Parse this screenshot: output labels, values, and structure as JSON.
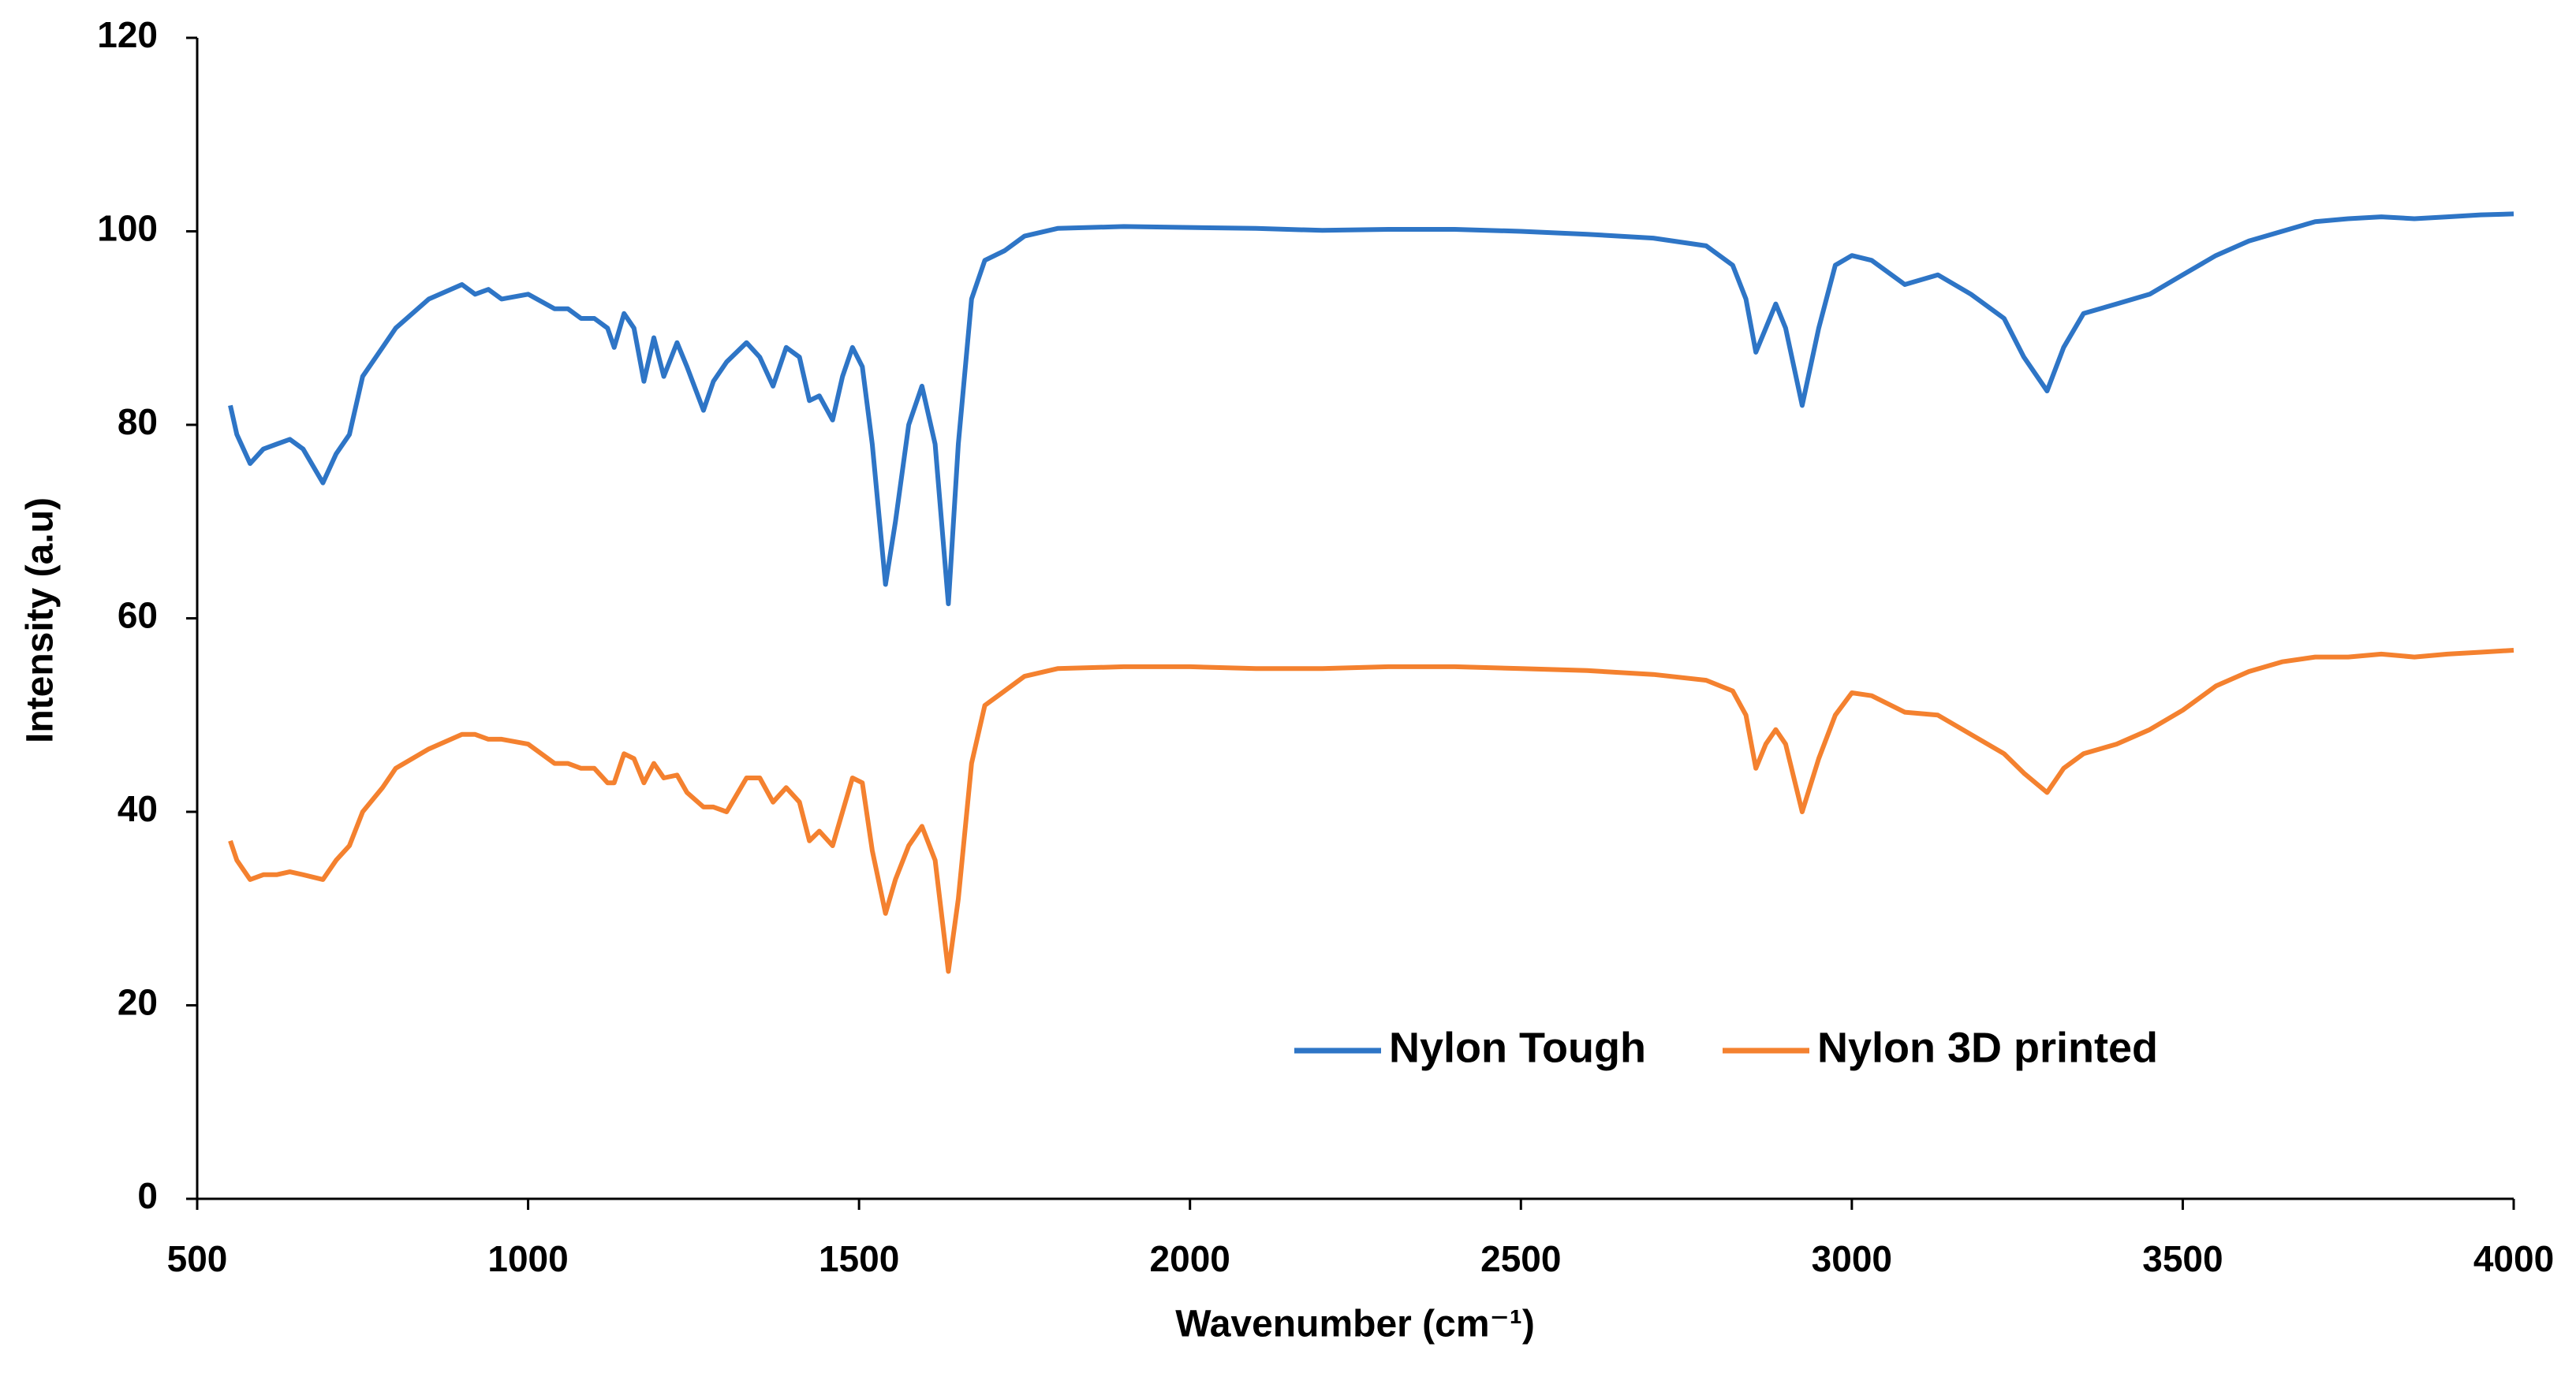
{
  "chart_data": {
    "type": "line",
    "x_label": "Wavenumber (cm⁻¹)",
    "y_label": "Intensity (a.u)",
    "x": [
      550,
      560,
      580,
      600,
      620,
      640,
      660,
      690,
      710,
      730,
      750,
      780,
      800,
      850,
      900,
      920,
      940,
      960,
      1000,
      1040,
      1060,
      1080,
      1100,
      1120,
      1130,
      1145,
      1160,
      1175,
      1190,
      1205,
      1225,
      1240,
      1265,
      1280,
      1300,
      1330,
      1350,
      1370,
      1390,
      1410,
      1425,
      1440,
      1460,
      1475,
      1490,
      1505,
      1520,
      1540,
      1555,
      1575,
      1595,
      1615,
      1635,
      1650,
      1670,
      1690,
      1720,
      1750,
      1800,
      1900,
      2000,
      2100,
      2200,
      2300,
      2400,
      2500,
      2600,
      2700,
      2780,
      2820,
      2840,
      2855,
      2870,
      2885,
      2900,
      2925,
      2950,
      2975,
      3000,
      3030,
      3080,
      3130,
      3180,
      3230,
      3260,
      3295,
      3320,
      3350,
      3400,
      3450,
      3500,
      3550,
      3600,
      3650,
      3700,
      3750,
      3800,
      3850,
      3900,
      3950,
      4000
    ],
    "series": [
      {
        "name": "Nylon Tough",
        "color": "#2e75c6",
        "values": [
          82,
          79,
          76,
          77.5,
          78,
          78.5,
          77.5,
          74,
          77,
          79,
          85,
          88,
          90,
          93,
          94.5,
          93.5,
          94,
          93,
          93.5,
          92,
          92,
          91,
          91,
          90,
          88,
          91.5,
          90,
          84.5,
          89,
          85,
          88.5,
          86,
          81.5,
          84.5,
          86.5,
          88.5,
          87,
          84,
          88,
          87,
          82.5,
          83,
          80.5,
          85,
          88,
          86,
          78,
          63.5,
          70,
          80,
          84,
          78,
          61.5,
          78,
          93,
          97,
          98,
          99.5,
          100.3,
          100.5,
          100.4,
          100.3,
          100.1,
          100.2,
          100.2,
          100,
          99.7,
          99.3,
          98.5,
          96.5,
          93,
          87.5,
          90,
          92.5,
          90,
          82,
          90,
          96.5,
          97.5,
          97,
          94.5,
          95.5,
          93.5,
          91,
          87,
          83.5,
          88,
          91.5,
          92.5,
          93.5,
          95.5,
          97.5,
          99,
          100,
          101,
          101.3,
          101.5,
          101.3,
          101.5,
          101.7,
          101.8
        ]
      },
      {
        "name": "Nylon 3D printed",
        "color": "#f4812f",
        "values": [
          37,
          35,
          33,
          33.5,
          33.5,
          33.8,
          33.5,
          33,
          35,
          36.5,
          40,
          42.5,
          44.5,
          46.5,
          48,
          48,
          47.5,
          47.5,
          47,
          45,
          45,
          44.5,
          44.5,
          43,
          43,
          46,
          45.5,
          43,
          45,
          43.5,
          43.8,
          42,
          40.5,
          40.5,
          40,
          43.5,
          43.5,
          41,
          42.5,
          41,
          37,
          38,
          36.5,
          40,
          43.5,
          43,
          36,
          29.5,
          33,
          36.5,
          38.5,
          35,
          23.5,
          31,
          45,
          51,
          52.5,
          54,
          54.8,
          55,
          55,
          54.8,
          54.8,
          55,
          55,
          54.8,
          54.6,
          54.2,
          53.6,
          52.5,
          50,
          44.5,
          47,
          48.5,
          47,
          40,
          45.5,
          50,
          52.3,
          52,
          50.3,
          50,
          48,
          46,
          44,
          42,
          44.5,
          46,
          47,
          48.5,
          50.5,
          53,
          54.5,
          55.5,
          56,
          56,
          56.3,
          56,
          56.3,
          56.5,
          56.7
        ]
      }
    ],
    "xlim": [
      500,
      4000
    ],
    "xticks": [
      500,
      1000,
      1500,
      2000,
      2500,
      3000,
      3500,
      4000
    ],
    "ylim": [
      0,
      120
    ],
    "yticks": [
      0,
      20,
      40,
      60,
      80,
      100,
      120
    ],
    "grid": false
  }
}
